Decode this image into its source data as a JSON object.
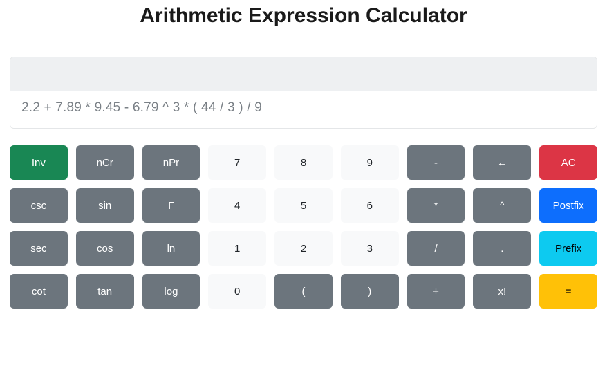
{
  "title": "Arithmetic Expression Calculator",
  "display": {
    "result": "",
    "expression": "2.2 + 7.89 * 9.45 - 6.79 ^ 3 * ( 44 / 3 ) / 9"
  },
  "colors": {
    "gray": "#6c757d",
    "light": "#f8f9fa",
    "green": "#198754",
    "red": "#dc3545",
    "blue": "#0d6efd",
    "cyan": "#0dcaf0",
    "yellow": "#ffc107",
    "display_top_bg": "#eef0f2",
    "display_text": "#7a8086"
  },
  "buttons": [
    [
      {
        "name": "inv-button",
        "label": "Inv",
        "style": "green"
      },
      {
        "name": "ncr-button",
        "label": "nCr",
        "style": "gray"
      },
      {
        "name": "npr-button",
        "label": "nPr",
        "style": "gray"
      },
      {
        "name": "digit-7-button",
        "label": "7",
        "style": "light"
      },
      {
        "name": "digit-8-button",
        "label": "8",
        "style": "light"
      },
      {
        "name": "digit-9-button",
        "label": "9",
        "style": "light"
      },
      {
        "name": "minus-button",
        "label": "-",
        "style": "gray"
      },
      {
        "name": "backspace-button",
        "label": "←",
        "style": "gray"
      },
      {
        "name": "clear-button",
        "label": "AC",
        "style": "red"
      }
    ],
    [
      {
        "name": "csc-button",
        "label": "csc",
        "style": "gray"
      },
      {
        "name": "sin-button",
        "label": "sin",
        "style": "gray"
      },
      {
        "name": "gamma-button",
        "label": "Γ",
        "style": "gray"
      },
      {
        "name": "digit-4-button",
        "label": "4",
        "style": "light"
      },
      {
        "name": "digit-5-button",
        "label": "5",
        "style": "light"
      },
      {
        "name": "digit-6-button",
        "label": "6",
        "style": "light"
      },
      {
        "name": "multiply-button",
        "label": "*",
        "style": "gray"
      },
      {
        "name": "power-button",
        "label": "^",
        "style": "gray"
      },
      {
        "name": "postfix-button",
        "label": "Postfix",
        "style": "blue"
      }
    ],
    [
      {
        "name": "sec-button",
        "label": "sec",
        "style": "gray"
      },
      {
        "name": "cos-button",
        "label": "cos",
        "style": "gray"
      },
      {
        "name": "ln-button",
        "label": "ln",
        "style": "gray"
      },
      {
        "name": "digit-1-button",
        "label": "1",
        "style": "light"
      },
      {
        "name": "digit-2-button",
        "label": "2",
        "style": "light"
      },
      {
        "name": "digit-3-button",
        "label": "3",
        "style": "light"
      },
      {
        "name": "divide-button",
        "label": "/",
        "style": "gray"
      },
      {
        "name": "decimal-button",
        "label": ".",
        "style": "gray"
      },
      {
        "name": "prefix-button",
        "label": "Prefix",
        "style": "cyan"
      }
    ],
    [
      {
        "name": "cot-button",
        "label": "cot",
        "style": "gray"
      },
      {
        "name": "tan-button",
        "label": "tan",
        "style": "gray"
      },
      {
        "name": "log-button",
        "label": "log",
        "style": "gray"
      },
      {
        "name": "digit-0-button",
        "label": "0",
        "style": "light"
      },
      {
        "name": "open-paren-button",
        "label": "(",
        "style": "gray"
      },
      {
        "name": "close-paren-button",
        "label": ")",
        "style": "gray"
      },
      {
        "name": "plus-button",
        "label": "+",
        "style": "gray"
      },
      {
        "name": "factorial-button",
        "label": "x!",
        "style": "gray"
      },
      {
        "name": "equals-button",
        "label": "=",
        "style": "yellow"
      }
    ]
  ]
}
